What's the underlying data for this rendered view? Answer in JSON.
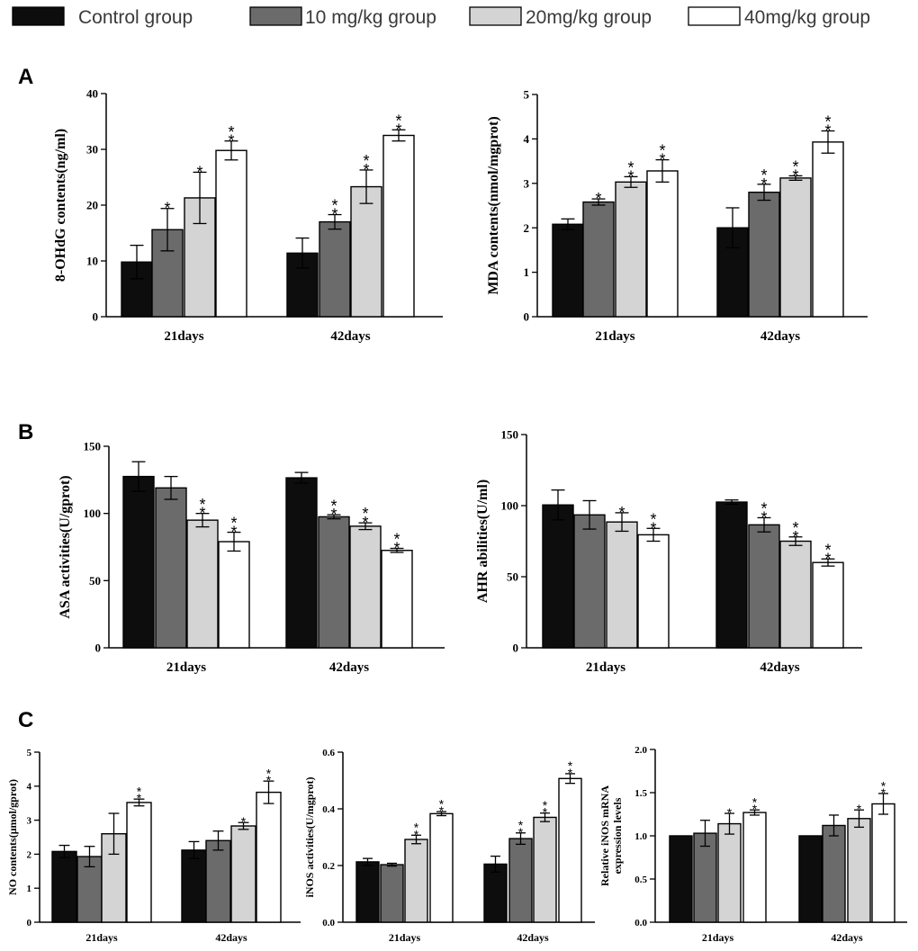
{
  "legend": [
    {
      "label": "Control group",
      "color": "#0d0d0d"
    },
    {
      "label": "10 mg/kg group",
      "color": "#6b6b6b"
    },
    {
      "label": "20mg/kg group",
      "color": "#d4d4d4"
    },
    {
      "label": "40mg/kg group",
      "color": "#ffffff"
    }
  ],
  "panel_letters": [
    "A",
    "B",
    "C"
  ],
  "chart_data": [
    {
      "id": "ohdg",
      "type": "bar",
      "panel": "A",
      "ylabel": "8-OHdG contents(ng/ml)",
      "ylim": [
        0,
        40
      ],
      "yticks": [
        "0",
        "10",
        "20",
        "30",
        "40"
      ],
      "ytick_values": [
        0,
        10,
        20,
        30,
        40
      ],
      "categories": [
        "21days",
        "42days"
      ],
      "series": [
        {
          "name": "Control group",
          "values": [
            9.8,
            11.4
          ],
          "errors": [
            3.0,
            2.7
          ],
          "sig": [
            "",
            ""
          ]
        },
        {
          "name": "10 mg/kg group",
          "values": [
            15.6,
            17.0
          ],
          "errors": [
            3.8,
            1.3
          ],
          "sig": [
            "*",
            "**"
          ]
        },
        {
          "name": "20mg/kg group",
          "values": [
            21.3,
            23.3
          ],
          "errors": [
            4.6,
            3.0
          ],
          "sig": [
            "*",
            "**"
          ]
        },
        {
          "name": "40mg/kg group",
          "values": [
            29.8,
            32.5
          ],
          "errors": [
            1.7,
            1.0
          ],
          "sig": [
            "**",
            "**"
          ]
        }
      ]
    },
    {
      "id": "mda",
      "type": "bar",
      "panel": "A",
      "ylabel": "MDA contents(nmol/mgprot)",
      "ylim": [
        0,
        5
      ],
      "yticks": [
        "0",
        "1",
        "2",
        "3",
        "4",
        "5"
      ],
      "ytick_values": [
        0,
        1,
        2,
        3,
        4,
        5
      ],
      "categories": [
        "21days",
        "42days"
      ],
      "series": [
        {
          "name": "Control group",
          "values": [
            2.08,
            2.0
          ],
          "errors": [
            0.12,
            0.45
          ],
          "sig": [
            "",
            ""
          ]
        },
        {
          "name": "10 mg/kg group",
          "values": [
            2.58,
            2.8
          ],
          "errors": [
            0.07,
            0.18
          ],
          "sig": [
            "*",
            "**"
          ]
        },
        {
          "name": "20mg/kg group",
          "values": [
            3.03,
            3.12
          ],
          "errors": [
            0.12,
            0.05
          ],
          "sig": [
            "**",
            "**"
          ]
        },
        {
          "name": "40mg/kg group",
          "values": [
            3.28,
            3.93
          ],
          "errors": [
            0.25,
            0.25
          ],
          "sig": [
            "**",
            "**"
          ]
        }
      ]
    },
    {
      "id": "asa",
      "type": "bar",
      "panel": "B",
      "ylabel": "ASA activities(U/gprot)",
      "ylim": [
        0,
        150
      ],
      "yticks": [
        "0",
        "50",
        "100",
        "150"
      ],
      "ytick_values": [
        0,
        50,
        100,
        150
      ],
      "categories": [
        "21days",
        "42days"
      ],
      "series": [
        {
          "name": "Control group",
          "values": [
            127.5,
            126.5
          ],
          "errors": [
            11.0,
            4.0
          ],
          "sig": [
            "",
            ""
          ]
        },
        {
          "name": "10 mg/kg group",
          "values": [
            119.0,
            97.5
          ],
          "errors": [
            8.5,
            1.5
          ],
          "sig": [
            "",
            "**"
          ]
        },
        {
          "name": "20mg/kg group",
          "values": [
            95.0,
            90.5
          ],
          "errors": [
            5.0,
            2.5
          ],
          "sig": [
            "**",
            "**"
          ]
        },
        {
          "name": "40mg/kg group",
          "values": [
            79.0,
            72.5
          ],
          "errors": [
            7.0,
            1.5
          ],
          "sig": [
            "**",
            "**"
          ]
        }
      ]
    },
    {
      "id": "ahr",
      "type": "bar",
      "panel": "B",
      "ylabel": "AHR abilities(U/ml)",
      "ylim": [
        0,
        150
      ],
      "yticks": [
        "0",
        "50",
        "100",
        "150"
      ],
      "ytick_values": [
        0,
        50,
        100,
        150
      ],
      "categories": [
        "21days",
        "42days"
      ],
      "series": [
        {
          "name": "Control group",
          "values": [
            100.5,
            102.5
          ],
          "errors": [
            10.5,
            1.5
          ],
          "sig": [
            "",
            ""
          ]
        },
        {
          "name": "10 mg/kg group",
          "values": [
            93.5,
            86.5
          ],
          "errors": [
            10.0,
            5.0
          ],
          "sig": [
            "",
            "**"
          ]
        },
        {
          "name": "20mg/kg group",
          "values": [
            88.5,
            75.0
          ],
          "errors": [
            6.5,
            3.0
          ],
          "sig": [
            "*",
            "**"
          ]
        },
        {
          "name": "40mg/kg group",
          "values": [
            79.5,
            60.0
          ],
          "errors": [
            4.5,
            2.5
          ],
          "sig": [
            "**",
            "**"
          ]
        }
      ]
    },
    {
      "id": "no",
      "type": "bar",
      "panel": "C",
      "ylabel": "NO contents(μmol/gprot)",
      "ylim": [
        0,
        5
      ],
      "yticks": [
        "0",
        "1",
        "2",
        "3",
        "4",
        "5"
      ],
      "ytick_values": [
        0,
        1,
        2,
        3,
        4,
        5
      ],
      "categories": [
        "21days",
        "42days"
      ],
      "series": [
        {
          "name": "Control group",
          "values": [
            2.08,
            2.12
          ],
          "errors": [
            0.18,
            0.25
          ],
          "sig": [
            "",
            ""
          ]
        },
        {
          "name": "10 mg/kg group",
          "values": [
            1.93,
            2.4
          ],
          "errors": [
            0.3,
            0.28
          ],
          "sig": [
            "",
            ""
          ]
        },
        {
          "name": "20mg/kg group",
          "values": [
            2.6,
            2.83
          ],
          "errors": [
            0.6,
            0.1
          ],
          "sig": [
            "",
            "*"
          ]
        },
        {
          "name": "40mg/kg group",
          "values": [
            3.52,
            3.82
          ],
          "errors": [
            0.1,
            0.33
          ],
          "sig": [
            "**",
            "**"
          ]
        }
      ]
    },
    {
      "id": "inos",
      "type": "bar",
      "panel": "C",
      "ylabel": "iNOS activities(U/mgprot)",
      "ylim": [
        0,
        0.6
      ],
      "yticks": [
        "0.0",
        "0.2",
        "0.4",
        "0.6"
      ],
      "ytick_values": [
        0,
        0.2,
        0.4,
        0.6
      ],
      "categories": [
        "21days",
        "42days"
      ],
      "series": [
        {
          "name": "Control group",
          "values": [
            0.213,
            0.205
          ],
          "errors": [
            0.012,
            0.028
          ],
          "sig": [
            "",
            ""
          ]
        },
        {
          "name": "10 mg/kg group",
          "values": [
            0.203,
            0.295
          ],
          "errors": [
            0.005,
            0.02
          ],
          "sig": [
            "",
            "**"
          ]
        },
        {
          "name": "20mg/kg group",
          "values": [
            0.292,
            0.37
          ],
          "errors": [
            0.015,
            0.015
          ],
          "sig": [
            "**",
            "**"
          ]
        },
        {
          "name": "40mg/kg group",
          "values": [
            0.383,
            0.507
          ],
          "errors": [
            0.007,
            0.017
          ],
          "sig": [
            "**",
            "**"
          ]
        }
      ]
    },
    {
      "id": "inos_mrna",
      "type": "bar",
      "panel": "C",
      "ylabel": "Relative iNOS mRNA|expression levels",
      "ylim": [
        0,
        2.0
      ],
      "yticks": [
        "0.0",
        "0.5",
        "1.0",
        "1.5",
        "2.0"
      ],
      "ytick_values": [
        0,
        0.5,
        1.0,
        1.5,
        2.0
      ],
      "categories": [
        "21days",
        "42days"
      ],
      "series": [
        {
          "name": "Control group",
          "values": [
            1.0,
            1.0
          ],
          "errors": [
            0,
            0
          ],
          "sig": [
            "",
            ""
          ]
        },
        {
          "name": "10 mg/kg group",
          "values": [
            1.03,
            1.12
          ],
          "errors": [
            0.15,
            0.12
          ],
          "sig": [
            "",
            ""
          ]
        },
        {
          "name": "20mg/kg group",
          "values": [
            1.14,
            1.2
          ],
          "errors": [
            0.12,
            0.1
          ],
          "sig": [
            "*",
            "*"
          ]
        },
        {
          "name": "40mg/kg group",
          "values": [
            1.27,
            1.37
          ],
          "errors": [
            0.03,
            0.12
          ],
          "sig": [
            "**",
            "**"
          ]
        }
      ]
    }
  ]
}
